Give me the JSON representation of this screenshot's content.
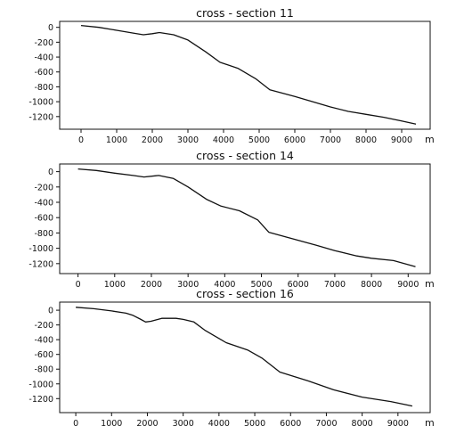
{
  "chart_data": [
    {
      "type": "line",
      "title": "cross - section 11",
      "xlabel": "",
      "ylabel": "",
      "x_unit": "m",
      "xlim": [
        -600,
        9800
      ],
      "ylim": [
        -1370,
        80
      ],
      "xticks": [
        0,
        1000,
        2000,
        3000,
        4000,
        5000,
        6000,
        7000,
        8000,
        9000
      ],
      "yticks": [
        0,
        -200,
        -400,
        -600,
        -800,
        -1000,
        -1200
      ],
      "grid": false,
      "series": [
        {
          "x": [
            0,
            500,
            1000,
            1500,
            1750,
            2000,
            2200,
            2600,
            3000,
            3500,
            3900,
            4400,
            4900,
            5300,
            6000,
            7000,
            7500,
            8000,
            8500,
            9000,
            9400
          ],
          "y": [
            25,
            0,
            -40,
            -80,
            -100,
            -85,
            -70,
            -100,
            -170,
            -330,
            -470,
            -550,
            -690,
            -840,
            -930,
            -1070,
            -1130,
            -1170,
            -1210,
            -1260,
            -1300
          ]
        }
      ]
    },
    {
      "type": "line",
      "title": "cross - section 14",
      "xlabel": "",
      "ylabel": "",
      "x_unit": "m",
      "xlim": [
        -500,
        9600
      ],
      "ylim": [
        -1330,
        100
      ],
      "xticks": [
        0,
        1000,
        2000,
        3000,
        4000,
        5000,
        6000,
        7000,
        8000,
        9000
      ],
      "yticks": [
        0,
        -200,
        -400,
        -600,
        -800,
        -1000,
        -1200
      ],
      "grid": false,
      "series": [
        {
          "x": [
            0,
            500,
            1000,
            1500,
            1800,
            2100,
            2200,
            2600,
            3000,
            3500,
            3900,
            4400,
            4900,
            5200,
            5800,
            6500,
            7000,
            7600,
            8000,
            8600,
            9200
          ],
          "y": [
            35,
            15,
            -20,
            -50,
            -70,
            -55,
            -50,
            -90,
            -200,
            -360,
            -450,
            -510,
            -630,
            -790,
            -870,
            -960,
            -1030,
            -1100,
            -1130,
            -1160,
            -1240
          ]
        }
      ]
    },
    {
      "type": "line",
      "title": "cross - section 16",
      "xlabel": "",
      "ylabel": "",
      "x_unit": "m",
      "xlim": [
        -450,
        9900
      ],
      "ylim": [
        -1390,
        110
      ],
      "xticks": [
        0,
        1000,
        2000,
        3000,
        4000,
        5000,
        6000,
        7000,
        8000,
        9000
      ],
      "yticks": [
        0,
        -200,
        -400,
        -600,
        -800,
        -1000,
        -1200
      ],
      "grid": false,
      "series": [
        {
          "x": [
            0,
            500,
            1000,
            1400,
            1600,
            1800,
            1950,
            2100,
            2400,
            2800,
            3000,
            3300,
            3600,
            4200,
            4800,
            5200,
            5700,
            6500,
            7200,
            8000,
            8800,
            9400
          ],
          "y": [
            40,
            20,
            -10,
            -40,
            -70,
            -120,
            -160,
            -150,
            -110,
            -110,
            -125,
            -160,
            -270,
            -440,
            -540,
            -650,
            -840,
            -960,
            -1080,
            -1180,
            -1240,
            -1300
          ]
        }
      ]
    }
  ]
}
